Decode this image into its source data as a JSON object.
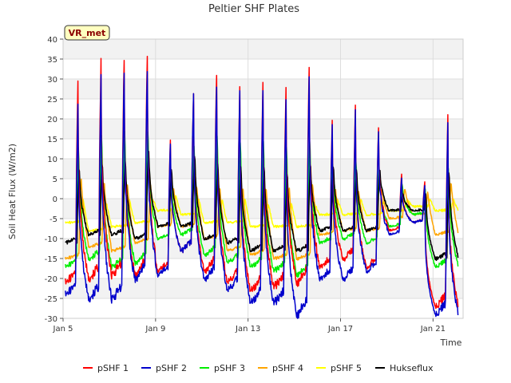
{
  "chart_data": {
    "type": "line",
    "title": "Peltier SHF Plates",
    "xlabel": "Time",
    "ylabel": "Soil Heat Flux (W/m2)",
    "site_label": "VR_met",
    "xlim": [
      5,
      22.3
    ],
    "ylim": [
      -30,
      40
    ],
    "yticks": [
      -30,
      -25,
      -20,
      -15,
      -10,
      -5,
      0,
      5,
      10,
      15,
      20,
      25,
      30,
      35,
      40
    ],
    "xticks": [
      {
        "value": 5,
        "label": "Jan 5"
      },
      {
        "value": 9,
        "label": "Jan 9"
      },
      {
        "value": 13,
        "label": "Jan 13"
      },
      {
        "value": 17,
        "label": "Jan 17"
      },
      {
        "value": 21,
        "label": "Jan 21"
      }
    ],
    "grid": true,
    "legend_position": "bottom",
    "series_colors": {
      "pSHF 1": "#ff0000",
      "pSHF 2": "#0000cc",
      "pSHF 3": "#00ee00",
      "pSHF 4": "#ffa500",
      "pSHF 5": "#ffff00",
      "Hukseflux": "#000000"
    },
    "daily_extremes": [
      {
        "day": 5,
        "pSHF 1": [
          -21,
          33
        ],
        "pSHF 2": [
          -24,
          27
        ],
        "pSHF 3": [
          -17,
          16
        ],
        "pSHF 4": [
          -15,
          6
        ],
        "pSHF 5": [
          -6,
          0
        ],
        "Hukseflux": [
          -11,
          10
        ]
      },
      {
        "day": 6,
        "pSHF 1": [
          -20,
          37
        ],
        "pSHF 2": [
          -25,
          33
        ],
        "pSHF 3": [
          -15,
          20
        ],
        "pSHF 4": [
          -12,
          5
        ],
        "pSHF 5": [
          -8,
          -1
        ],
        "Hukseflux": [
          -9,
          11
        ]
      },
      {
        "day": 7,
        "pSHF 1": [
          -19,
          38
        ],
        "pSHF 2": [
          -25,
          35
        ],
        "pSHF 3": [
          -17,
          21
        ],
        "pSHF 4": [
          -13,
          5
        ],
        "pSHF 5": [
          -7,
          0
        ],
        "Hukseflux": [
          -9,
          12
        ]
      },
      {
        "day": 8,
        "pSHF 1": [
          -19,
          39
        ],
        "pSHF 2": [
          -20,
          35
        ],
        "pSHF 3": [
          -16,
          21
        ],
        "pSHF 4": [
          -11,
          4
        ],
        "pSHF 5": [
          -6,
          0
        ],
        "Hukseflux": [
          -10,
          15
        ]
      },
      {
        "day": 9,
        "pSHF 1": [
          -18,
          17
        ],
        "pSHF 2": [
          -19,
          16
        ],
        "pSHF 3": [
          -10,
          8
        ],
        "pSHF 4": [
          -7,
          3
        ],
        "pSHF 5": [
          -3,
          1
        ],
        "Hukseflux": [
          -7,
          9
        ]
      },
      {
        "day": 10,
        "pSHF 1": [
          -13,
          28
        ],
        "pSHF 2": [
          -13,
          28
        ],
        "pSHF 3": [
          -9,
          16
        ],
        "pSHF 4": [
          -7,
          4
        ],
        "pSHF 5": [
          -4,
          0
        ],
        "Hukseflux": [
          -7,
          13
        ]
      },
      {
        "day": 11,
        "pSHF 1": [
          -18,
          34
        ],
        "pSHF 2": [
          -20,
          31
        ],
        "pSHF 3": [
          -14,
          19
        ],
        "pSHF 4": [
          -10,
          4
        ],
        "pSHF 5": [
          -6,
          0
        ],
        "Hukseflux": [
          -10,
          11
        ]
      },
      {
        "day": 12,
        "pSHF 1": [
          -21,
          30
        ],
        "pSHF 2": [
          -23,
          29
        ],
        "pSHF 3": [
          -16,
          18
        ],
        "pSHF 4": [
          -13,
          4
        ],
        "pSHF 5": [
          -6,
          0
        ],
        "Hukseflux": [
          -11,
          10
        ]
      },
      {
        "day": 13,
        "pSHF 1": [
          -23,
          32
        ],
        "pSHF 2": [
          -26,
          30
        ],
        "pSHF 3": [
          -17,
          18
        ],
        "pSHF 4": [
          -14,
          4
        ],
        "pSHF 5": [
          -7,
          -1
        ],
        "Hukseflux": [
          -13,
          10
        ]
      },
      {
        "day": 14,
        "pSHF 1": [
          -22,
          31
        ],
        "pSHF 2": [
          -26,
          28
        ],
        "pSHF 3": [
          -18,
          17
        ],
        "pSHF 4": [
          -15,
          4
        ],
        "pSHF 5": [
          -7,
          -1
        ],
        "Hukseflux": [
          -13,
          9
        ]
      },
      {
        "day": 15,
        "pSHF 1": [
          -21,
          36
        ],
        "pSHF 2": [
          -29,
          34
        ],
        "pSHF 3": [
          -19,
          18
        ],
        "pSHF 4": [
          -15,
          5
        ],
        "pSHF 5": [
          -7,
          -1
        ],
        "Hukseflux": [
          -13,
          11
        ]
      },
      {
        "day": 16,
        "pSHF 1": [
          -17,
          21
        ],
        "pSHF 2": [
          -20,
          20
        ],
        "pSHF 3": [
          -11,
          11
        ],
        "pSHF 4": [
          -9,
          3
        ],
        "pSHF 5": [
          -4,
          0
        ],
        "Hukseflux": [
          -8,
          10
        ]
      },
      {
        "day": 17,
        "pSHF 1": [
          -15,
          25
        ],
        "pSHF 2": [
          -20,
          24
        ],
        "pSHF 3": [
          -10,
          12
        ],
        "pSHF 4": [
          -8,
          3
        ],
        "pSHF 5": [
          -4,
          0
        ],
        "Hukseflux": [
          -8,
          9
        ]
      },
      {
        "day": 18,
        "pSHF 1": [
          -17,
          20
        ],
        "pSHF 2": [
          -18,
          19
        ],
        "pSHF 3": [
          -11,
          10
        ],
        "pSHF 4": [
          -8,
          3
        ],
        "pSHF 5": [
          -4,
          0
        ],
        "Hukseflux": [
          -8,
          9
        ]
      },
      {
        "day": 19,
        "pSHF 1": [
          -8,
          7
        ],
        "pSHF 2": [
          -9,
          6
        ],
        "pSHF 3": [
          -7,
          5
        ],
        "pSHF 4": [
          -5,
          3
        ],
        "pSHF 5": [
          -3,
          0
        ],
        "Hukseflux": [
          -3,
          2
        ]
      },
      {
        "day": 20,
        "pSHF 1": [
          -6,
          5
        ],
        "pSHF 2": [
          -6,
          4
        ],
        "pSHF 3": [
          -4,
          3
        ],
        "pSHF 4": [
          -4,
          2
        ],
        "pSHF 5": [
          -2,
          0
        ],
        "Hukseflux": [
          -3,
          2
        ]
      },
      {
        "day": 21,
        "pSHF 1": [
          -27,
          23
        ],
        "pSHF 2": [
          -29,
          21
        ],
        "pSHF 3": [
          -17,
          11
        ],
        "pSHF 4": [
          -9,
          5
        ],
        "pSHF 5": [
          -3,
          0
        ],
        "Hukseflux": [
          -15,
          9
        ]
      }
    ]
  }
}
